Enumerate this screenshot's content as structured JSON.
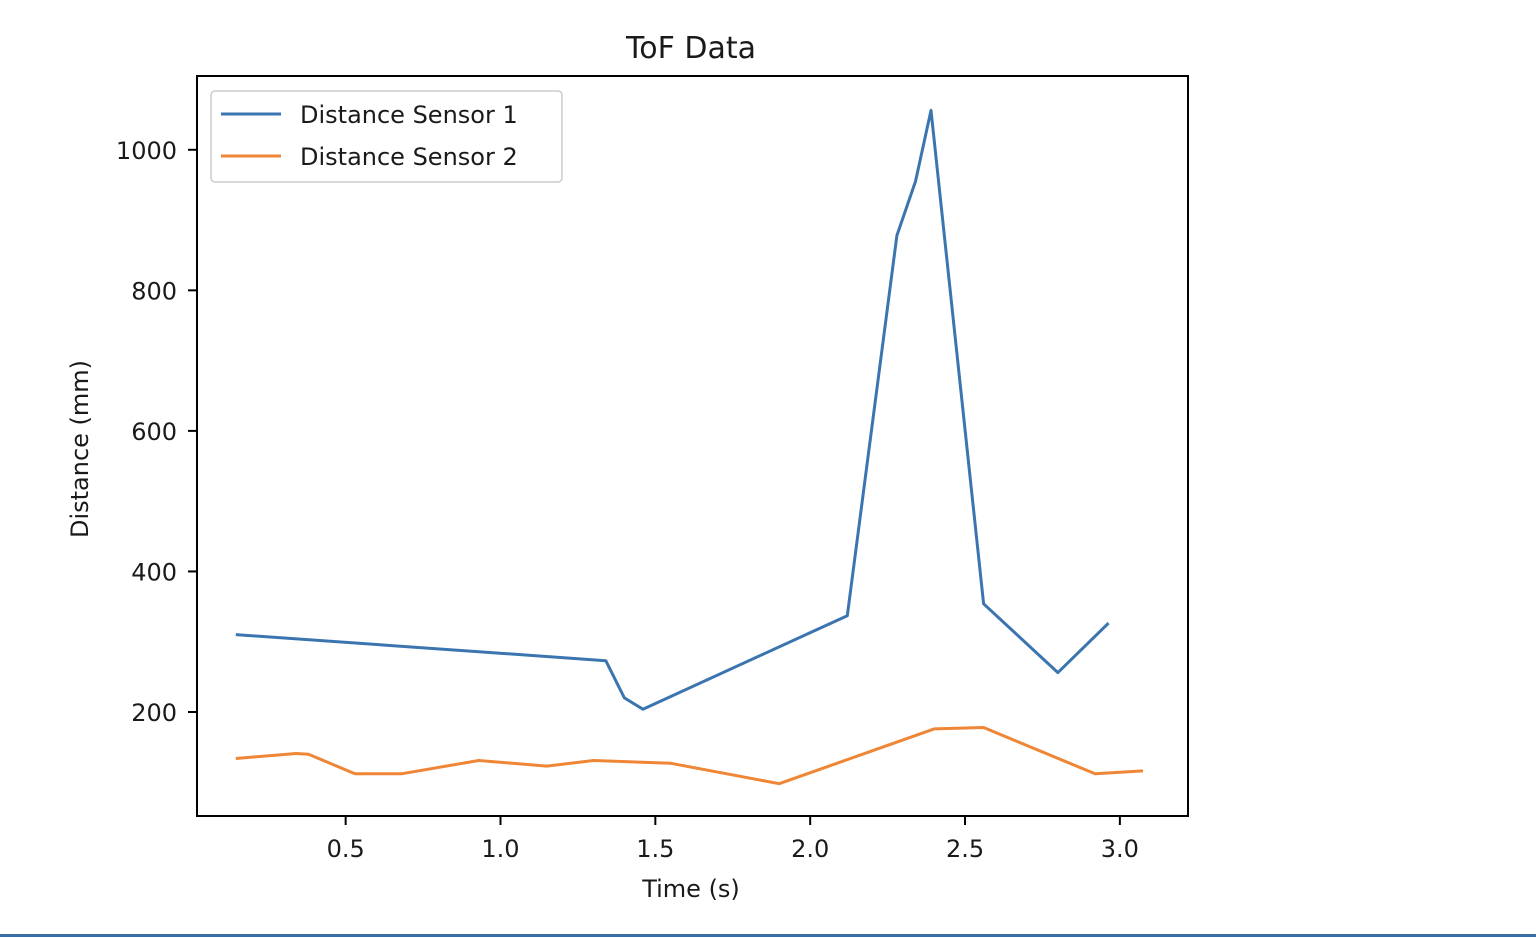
{
  "chart_data": {
    "type": "line",
    "title": "ToF Data",
    "xlabel": "Time (s)",
    "ylabel": "Distance (mm)",
    "xlim": [
      0.02,
      3.22
    ],
    "ylim": [
      52,
      1105
    ],
    "xticks": [
      0.5,
      1.0,
      1.5,
      2.0,
      2.5,
      3.0
    ],
    "xtick_labels": [
      "0.5",
      "1.0",
      "1.5",
      "2.0",
      "2.5",
      "3.0"
    ],
    "yticks": [
      200,
      400,
      600,
      800,
      1000
    ],
    "ytick_labels": [
      "200",
      "400",
      "600",
      "800",
      "1000"
    ],
    "grid": false,
    "legend_position": "top-left",
    "series": [
      {
        "name": "Distance Sensor 1",
        "color": "#3b75af",
        "x": [
          0.15,
          1.34,
          1.4,
          1.46,
          2.12,
          2.28,
          2.34,
          2.39,
          2.56,
          2.8,
          2.96
        ],
        "y": [
          310,
          273,
          220,
          204,
          337,
          878,
          955,
          1056,
          354,
          256,
          325
        ]
      },
      {
        "name": "Distance Sensor 2",
        "color": "#ef8636",
        "x": [
          0.15,
          0.34,
          0.38,
          0.53,
          0.68,
          0.93,
          1.15,
          1.3,
          1.55,
          1.9,
          2.4,
          2.56,
          2.92,
          3.07
        ],
        "y": [
          134,
          141,
          140,
          112,
          112,
          131,
          123,
          131,
          127,
          98,
          176,
          178,
          112,
          116
        ]
      }
    ]
  }
}
